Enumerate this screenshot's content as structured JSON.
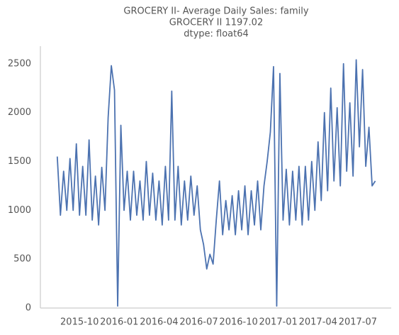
{
  "chart_data": {
    "type": "line",
    "title": "GROCERY II- Average Daily Sales: family",
    "subtitle": "GROCERY II   1197.02",
    "annotation": "dtype: float64",
    "x": [
      2015.61,
      2015.63,
      2015.65,
      2015.67,
      2015.69,
      2015.71,
      2015.73,
      2015.75,
      2015.77,
      2015.79,
      2015.81,
      2015.83,
      2015.85,
      2015.87,
      2015.89,
      2015.91,
      2015.93,
      2015.95,
      2015.97,
      2015.99,
      2016.01,
      2016.03,
      2016.05,
      2016.07,
      2016.09,
      2016.11,
      2016.13,
      2016.15,
      2016.17,
      2016.19,
      2016.21,
      2016.23,
      2016.25,
      2016.27,
      2016.29,
      2016.31,
      2016.33,
      2016.35,
      2016.37,
      2016.39,
      2016.41,
      2016.43,
      2016.45,
      2016.47,
      2016.49,
      2016.51,
      2016.53,
      2016.55,
      2016.57,
      2016.59,
      2016.61,
      2016.63,
      2016.65,
      2016.67,
      2016.69,
      2016.71,
      2016.73,
      2016.75,
      2016.77,
      2016.79,
      2016.81,
      2016.83,
      2016.85,
      2016.87,
      2016.89,
      2016.91,
      2016.93,
      2016.95,
      2016.97,
      2016.99,
      2017.01,
      2017.03,
      2017.05,
      2017.07,
      2017.09,
      2017.11,
      2017.13,
      2017.15,
      2017.17,
      2017.19,
      2017.21,
      2017.23,
      2017.25,
      2017.27,
      2017.29,
      2017.31,
      2017.33,
      2017.35,
      2017.37,
      2017.39,
      2017.41,
      2017.43,
      2017.45,
      2017.47,
      2017.49,
      2017.51,
      2017.53,
      2017.55,
      2017.57,
      2017.59,
      2017.61
    ],
    "series": [
      {
        "name": "family",
        "color": "#4c72b0",
        "values": [
          1550,
          950,
          1400,
          1000,
          1530,
          1000,
          1680,
          950,
          1450,
          950,
          1720,
          900,
          1350,
          850,
          1440,
          1000,
          1950,
          2480,
          2230,
          20,
          1870,
          1000,
          1400,
          900,
          1400,
          950,
          1300,
          900,
          1500,
          950,
          1380,
          900,
          1300,
          850,
          1450,
          900,
          2220,
          900,
          1450,
          850,
          1300,
          900,
          1350,
          950,
          1250,
          800,
          650,
          400,
          550,
          450,
          900,
          1300,
          750,
          1100,
          800,
          1150,
          750,
          1200,
          800,
          1250,
          750,
          1200,
          850,
          1300,
          800,
          1250,
          1500,
          1800,
          2470,
          20,
          2400,
          900,
          1420,
          850,
          1400,
          900,
          1450,
          850,
          1450,
          900,
          1500,
          1000,
          1700,
          1100,
          2000,
          1200,
          2250,
          1300,
          2050,
          1250,
          2500,
          1400,
          2100,
          1350,
          2540,
          1650,
          2440,
          1450,
          1850,
          1250,
          1300
        ]
      }
    ],
    "xlim": [
      2015.504,
      2017.71
    ],
    "xticks": [
      {
        "value": 2015.75,
        "label": "2015-10"
      },
      {
        "value": 2016.0,
        "label": "2016-01"
      },
      {
        "value": 2016.25,
        "label": "2016-04"
      },
      {
        "value": 2016.5,
        "label": "2016-07"
      },
      {
        "value": 2016.75,
        "label": "2016-10"
      },
      {
        "value": 2017.0,
        "label": "2017-01"
      },
      {
        "value": 2017.25,
        "label": "2017-04"
      },
      {
        "value": 2017.5,
        "label": "2017-07"
      }
    ],
    "ylim": [
      0,
      2680
    ],
    "yticks": [
      0,
      500,
      1000,
      1500,
      2000,
      2500
    ],
    "grid": false
  }
}
